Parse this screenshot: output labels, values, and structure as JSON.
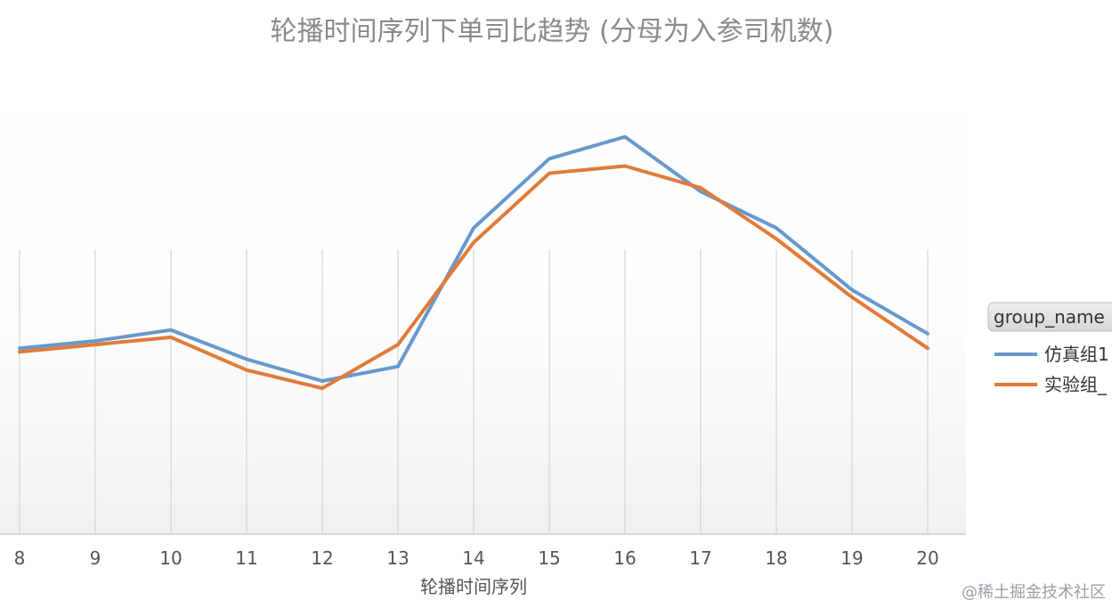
{
  "chart_data": {
    "type": "line",
    "title": "轮播时间序列下单司比趋势 (分母为入参司机数)",
    "xlabel": "轮播时间序列",
    "ylabel": "",
    "categories": [
      "8",
      "9",
      "10",
      "11",
      "12",
      "13",
      "14",
      "15",
      "16",
      "17",
      "18",
      "19",
      "20"
    ],
    "series": [
      {
        "name": "仿真组1",
        "color": "#6699cc",
        "values": [
          0.48,
          0.5,
          0.53,
          0.45,
          0.39,
          0.43,
          0.81,
          1.0,
          1.06,
          0.91,
          0.81,
          0.64,
          0.52
        ]
      },
      {
        "name": "实验组_",
        "color": "#e07b39",
        "values": [
          0.47,
          0.49,
          0.51,
          0.42,
          0.37,
          0.49,
          0.77,
          0.96,
          0.98,
          0.92,
          0.78,
          0.62,
          0.48
        ]
      }
    ],
    "ylim": [
      -0.03,
      1.24
    ],
    "grid": "vertical",
    "legend": {
      "title": "group_name",
      "placement": "right"
    }
  },
  "watermark": "@稀土掘金技术社区"
}
